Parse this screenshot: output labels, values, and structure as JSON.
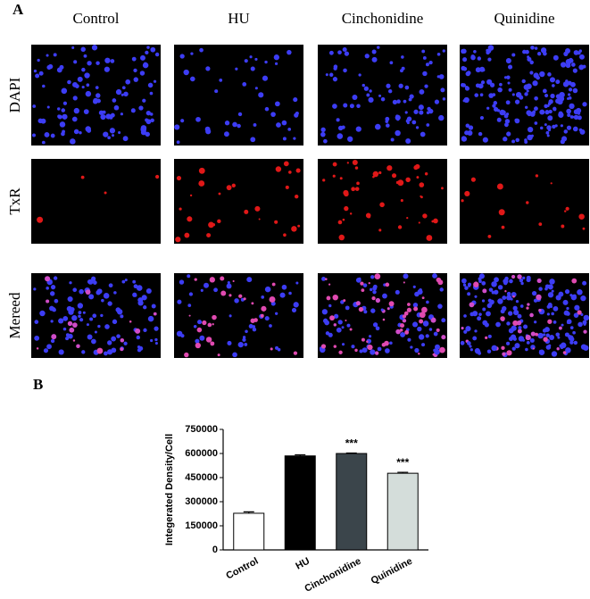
{
  "panel_a": {
    "label": "A",
    "columns": [
      "Control",
      "HU",
      "Cinchonidine",
      "Quinidine"
    ],
    "rows": [
      "DAPI",
      "TxR",
      "Mereed"
    ]
  },
  "chart_data": {
    "type": "bar",
    "panel_label": "B",
    "categories": [
      "Control",
      "HU",
      "Cinchonidine",
      "Quinidine"
    ],
    "values": [
      228000,
      585000,
      600000,
      477000
    ],
    "errors": [
      9000,
      7000,
      3000,
      6000
    ],
    "colors": [
      "#ffffff",
      "#000000",
      "#3b454b",
      "#d4ddda"
    ],
    "significance": [
      null,
      null,
      "***",
      "***"
    ],
    "ylabel": "Integerated Density/Cell",
    "ylim": [
      0,
      750000
    ],
    "yticks": [
      0,
      150000,
      300000,
      450000,
      600000,
      750000
    ],
    "grid": false
  }
}
